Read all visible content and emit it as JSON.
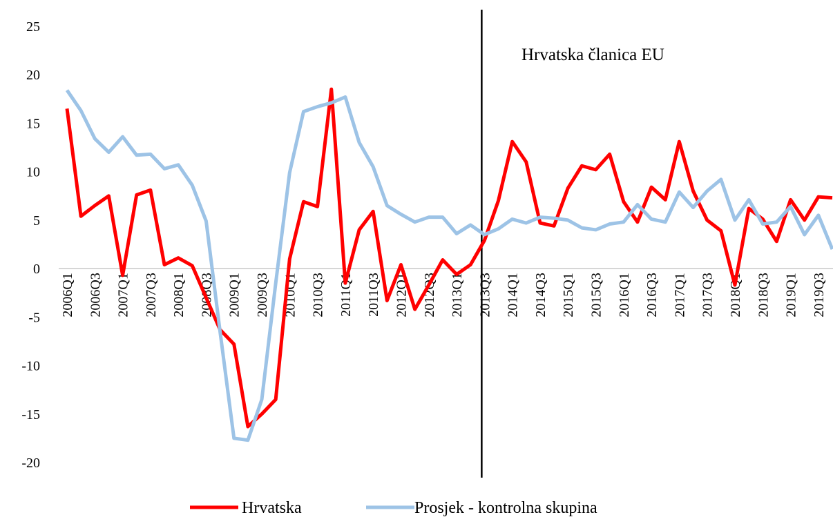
{
  "chart_data": {
    "type": "line",
    "categories": [
      "2006Q1",
      null,
      "2006Q3",
      null,
      "2007Q1",
      null,
      "2007Q3",
      null,
      "2008Q1",
      null,
      "2008Q3",
      null,
      "2009Q1",
      null,
      "2009Q3",
      null,
      "2010Q1",
      null,
      "2010Q3",
      null,
      "2011Q1",
      null,
      "2011Q3",
      null,
      "2012Q1",
      null,
      "2012Q3",
      null,
      "2013Q1",
      null,
      "2013Q3",
      null,
      "2014Q1",
      null,
      "2014Q3",
      null,
      "2015Q1",
      null,
      "2015Q3",
      null,
      "2016Q1",
      null,
      "2016Q3",
      null,
      "2017Q1",
      null,
      "2017Q3",
      null,
      "2018Q1",
      null,
      "2018Q3",
      null,
      "2019Q1",
      null,
      "2019Q3",
      null
    ],
    "series": [
      {
        "name": "Hrvatska",
        "color": "#ff0000",
        "values": [
          16.5,
          5.4,
          6.5,
          7.5,
          -0.7,
          7.6,
          8.1,
          0.4,
          1.1,
          0.3,
          -3.0,
          -6.3,
          -7.8,
          -16.3,
          -15.0,
          -13.5,
          1.0,
          6.9,
          6.4,
          18.5,
          -1.5,
          4.0,
          5.9,
          -3.3,
          0.4,
          -4.2,
          -1.7,
          0.9,
          -0.6,
          0.4,
          2.9,
          7.0,
          13.1,
          11.0,
          4.7,
          4.4,
          8.3,
          10.6,
          10.2,
          11.8,
          6.9,
          4.8,
          8.4,
          7.1,
          13.1,
          8.0,
          5.0,
          3.9,
          -1.7,
          6.2,
          5.1,
          2.8,
          7.1,
          5.0,
          7.4,
          7.3
        ]
      },
      {
        "name": "Prosjek - kontrolna skupina",
        "color": "#9dc3e6",
        "values": [
          18.4,
          16.3,
          13.4,
          12.0,
          13.6,
          11.7,
          11.8,
          10.3,
          10.7,
          8.6,
          4.9,
          -6.5,
          -17.5,
          -17.7,
          -13.5,
          -1.5,
          9.9,
          16.2,
          16.7,
          17.1,
          17.7,
          13.0,
          10.5,
          6.5,
          5.6,
          4.8,
          5.3,
          5.3,
          3.6,
          4.5,
          3.5,
          4.1,
          5.1,
          4.7,
          5.3,
          5.2,
          5.0,
          4.2,
          4.0,
          4.6,
          4.8,
          6.6,
          5.1,
          4.8,
          7.9,
          6.3,
          8.0,
          9.2,
          5.0,
          7.1,
          4.6,
          4.8,
          6.4,
          3.5,
          5.5,
          2.0
        ]
      }
    ],
    "ylim": [
      -20,
      25
    ],
    "yticks": [
      -20,
      -15,
      -10,
      -5,
      0,
      5,
      10,
      15,
      20,
      25
    ],
    "annotations": [
      {
        "text": "Hrvatska članica EU",
        "x": "2013Q3"
      }
    ],
    "legend": "bottom"
  }
}
